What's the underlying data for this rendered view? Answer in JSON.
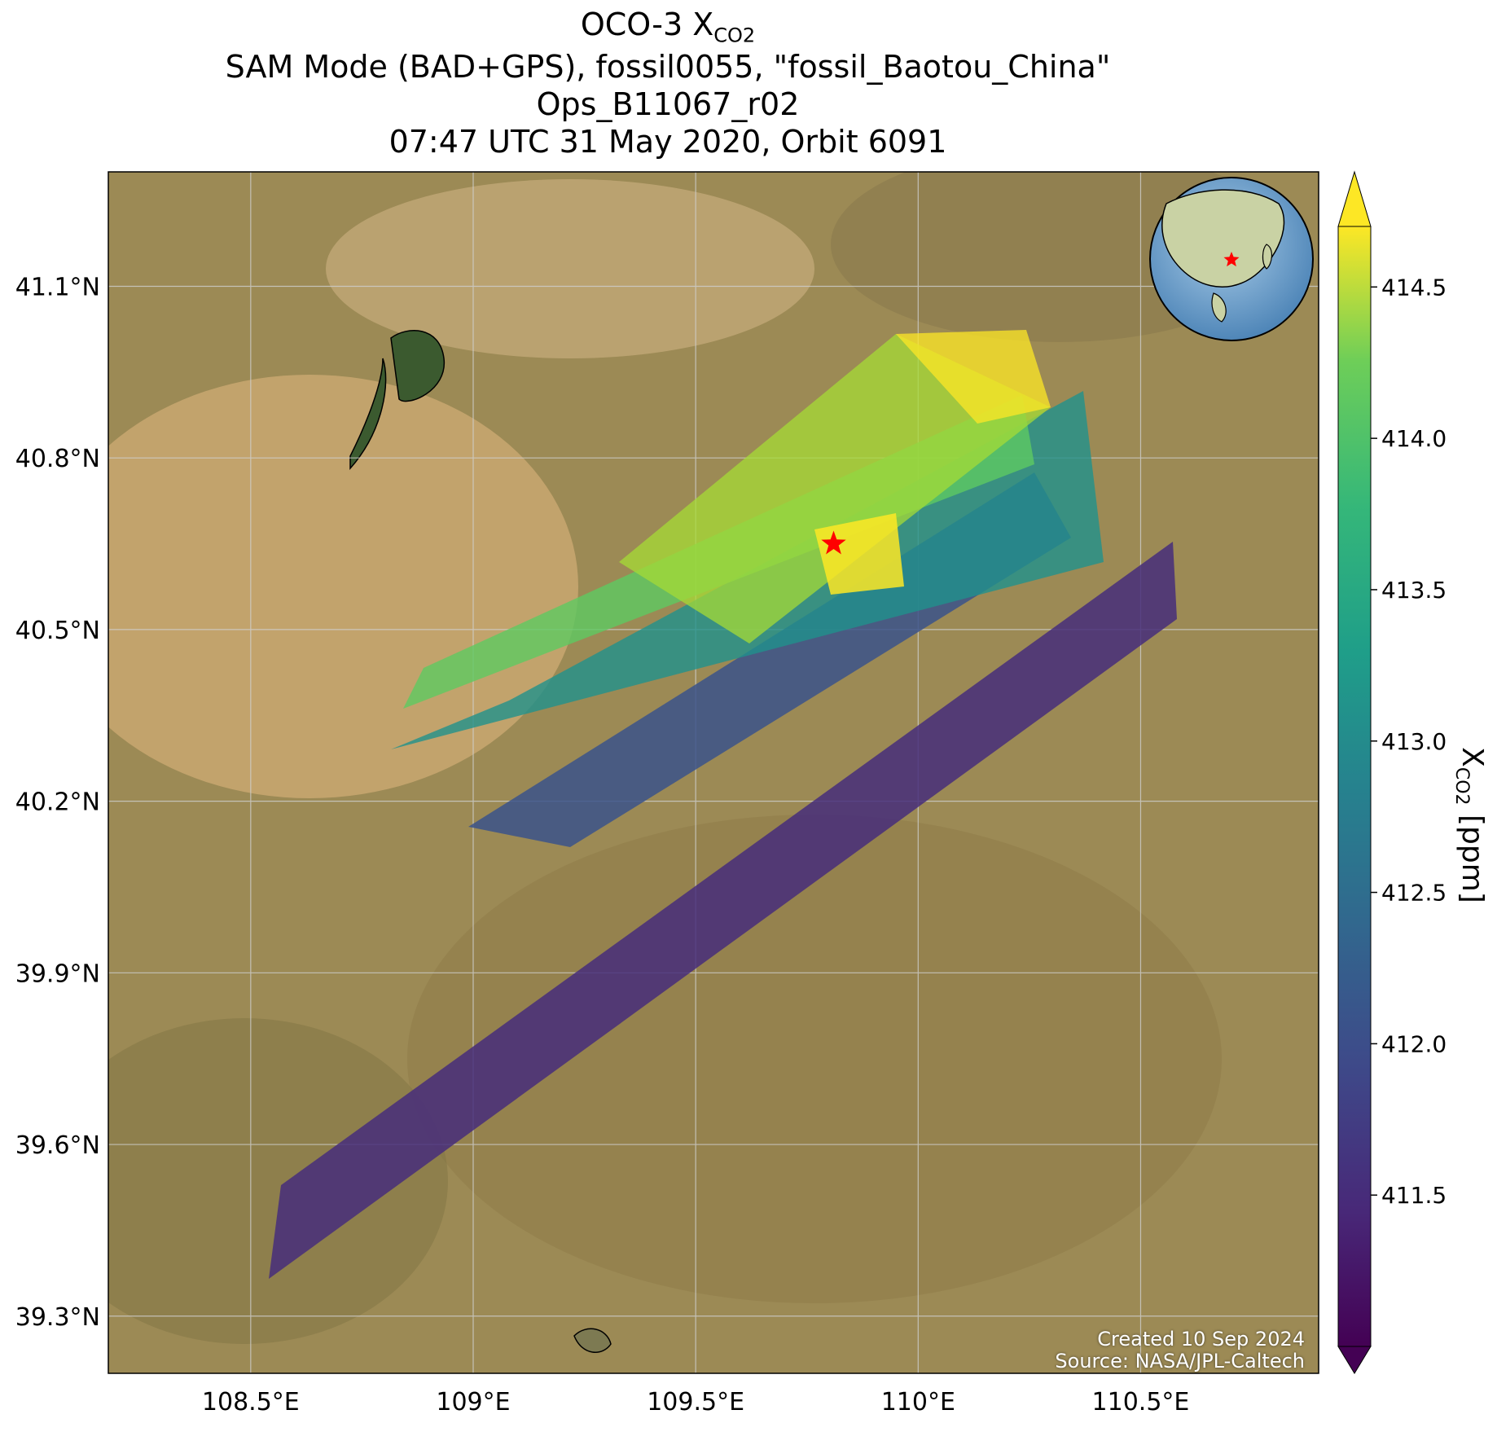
{
  "title": {
    "line1_prefix": "OCO-3 X",
    "line1_sub": "CO2",
    "line2": "SAM Mode (BAD+GPS), fossil0055, \"fossil_Baotou_China\"",
    "line3": "Ops_B11067_r02",
    "line4": "07:47 UTC 31 May 2020, Orbit 6091"
  },
  "map": {
    "lon_ticks": [
      "108.5°E",
      "109°E",
      "109.5°E",
      "110°E",
      "110.5°E"
    ],
    "lat_ticks": [
      "41.1°N",
      "40.8°N",
      "40.5°N",
      "40.2°N",
      "39.9°N",
      "39.6°N",
      "39.3°N"
    ],
    "lon_values": [
      108.5,
      109.0,
      109.5,
      110.0,
      110.5
    ],
    "lat_values": [
      41.1,
      40.8,
      40.5,
      40.2,
      39.9,
      39.6,
      39.3
    ],
    "lon_range": [
      108.18,
      110.9
    ],
    "lat_range": [
      39.2,
      41.3
    ],
    "target_marker": {
      "lon": 109.81,
      "lat": 40.65,
      "symbol": "star",
      "color": "#ff0000"
    },
    "basemap": "satellite imagery",
    "gridlines": true,
    "inset_globe": {
      "center": "East Asia",
      "marker_color": "#ff0000"
    }
  },
  "colorbar": {
    "label_prefix": "X",
    "label_sub": "CO2",
    "label_suffix": " [ppm]",
    "ticks": [
      "414.5",
      "414.0",
      "413.5",
      "413.0",
      "412.5",
      "412.0",
      "411.5"
    ],
    "tick_values": [
      414.5,
      414.0,
      413.5,
      413.0,
      412.5,
      412.0,
      411.5
    ],
    "range": [
      411.0,
      414.7
    ],
    "colormap": "viridis",
    "extend": "both"
  },
  "credits": {
    "created": "Created 10 Sep 2024",
    "source": "Source: NASA/JPL-Caltech"
  }
}
